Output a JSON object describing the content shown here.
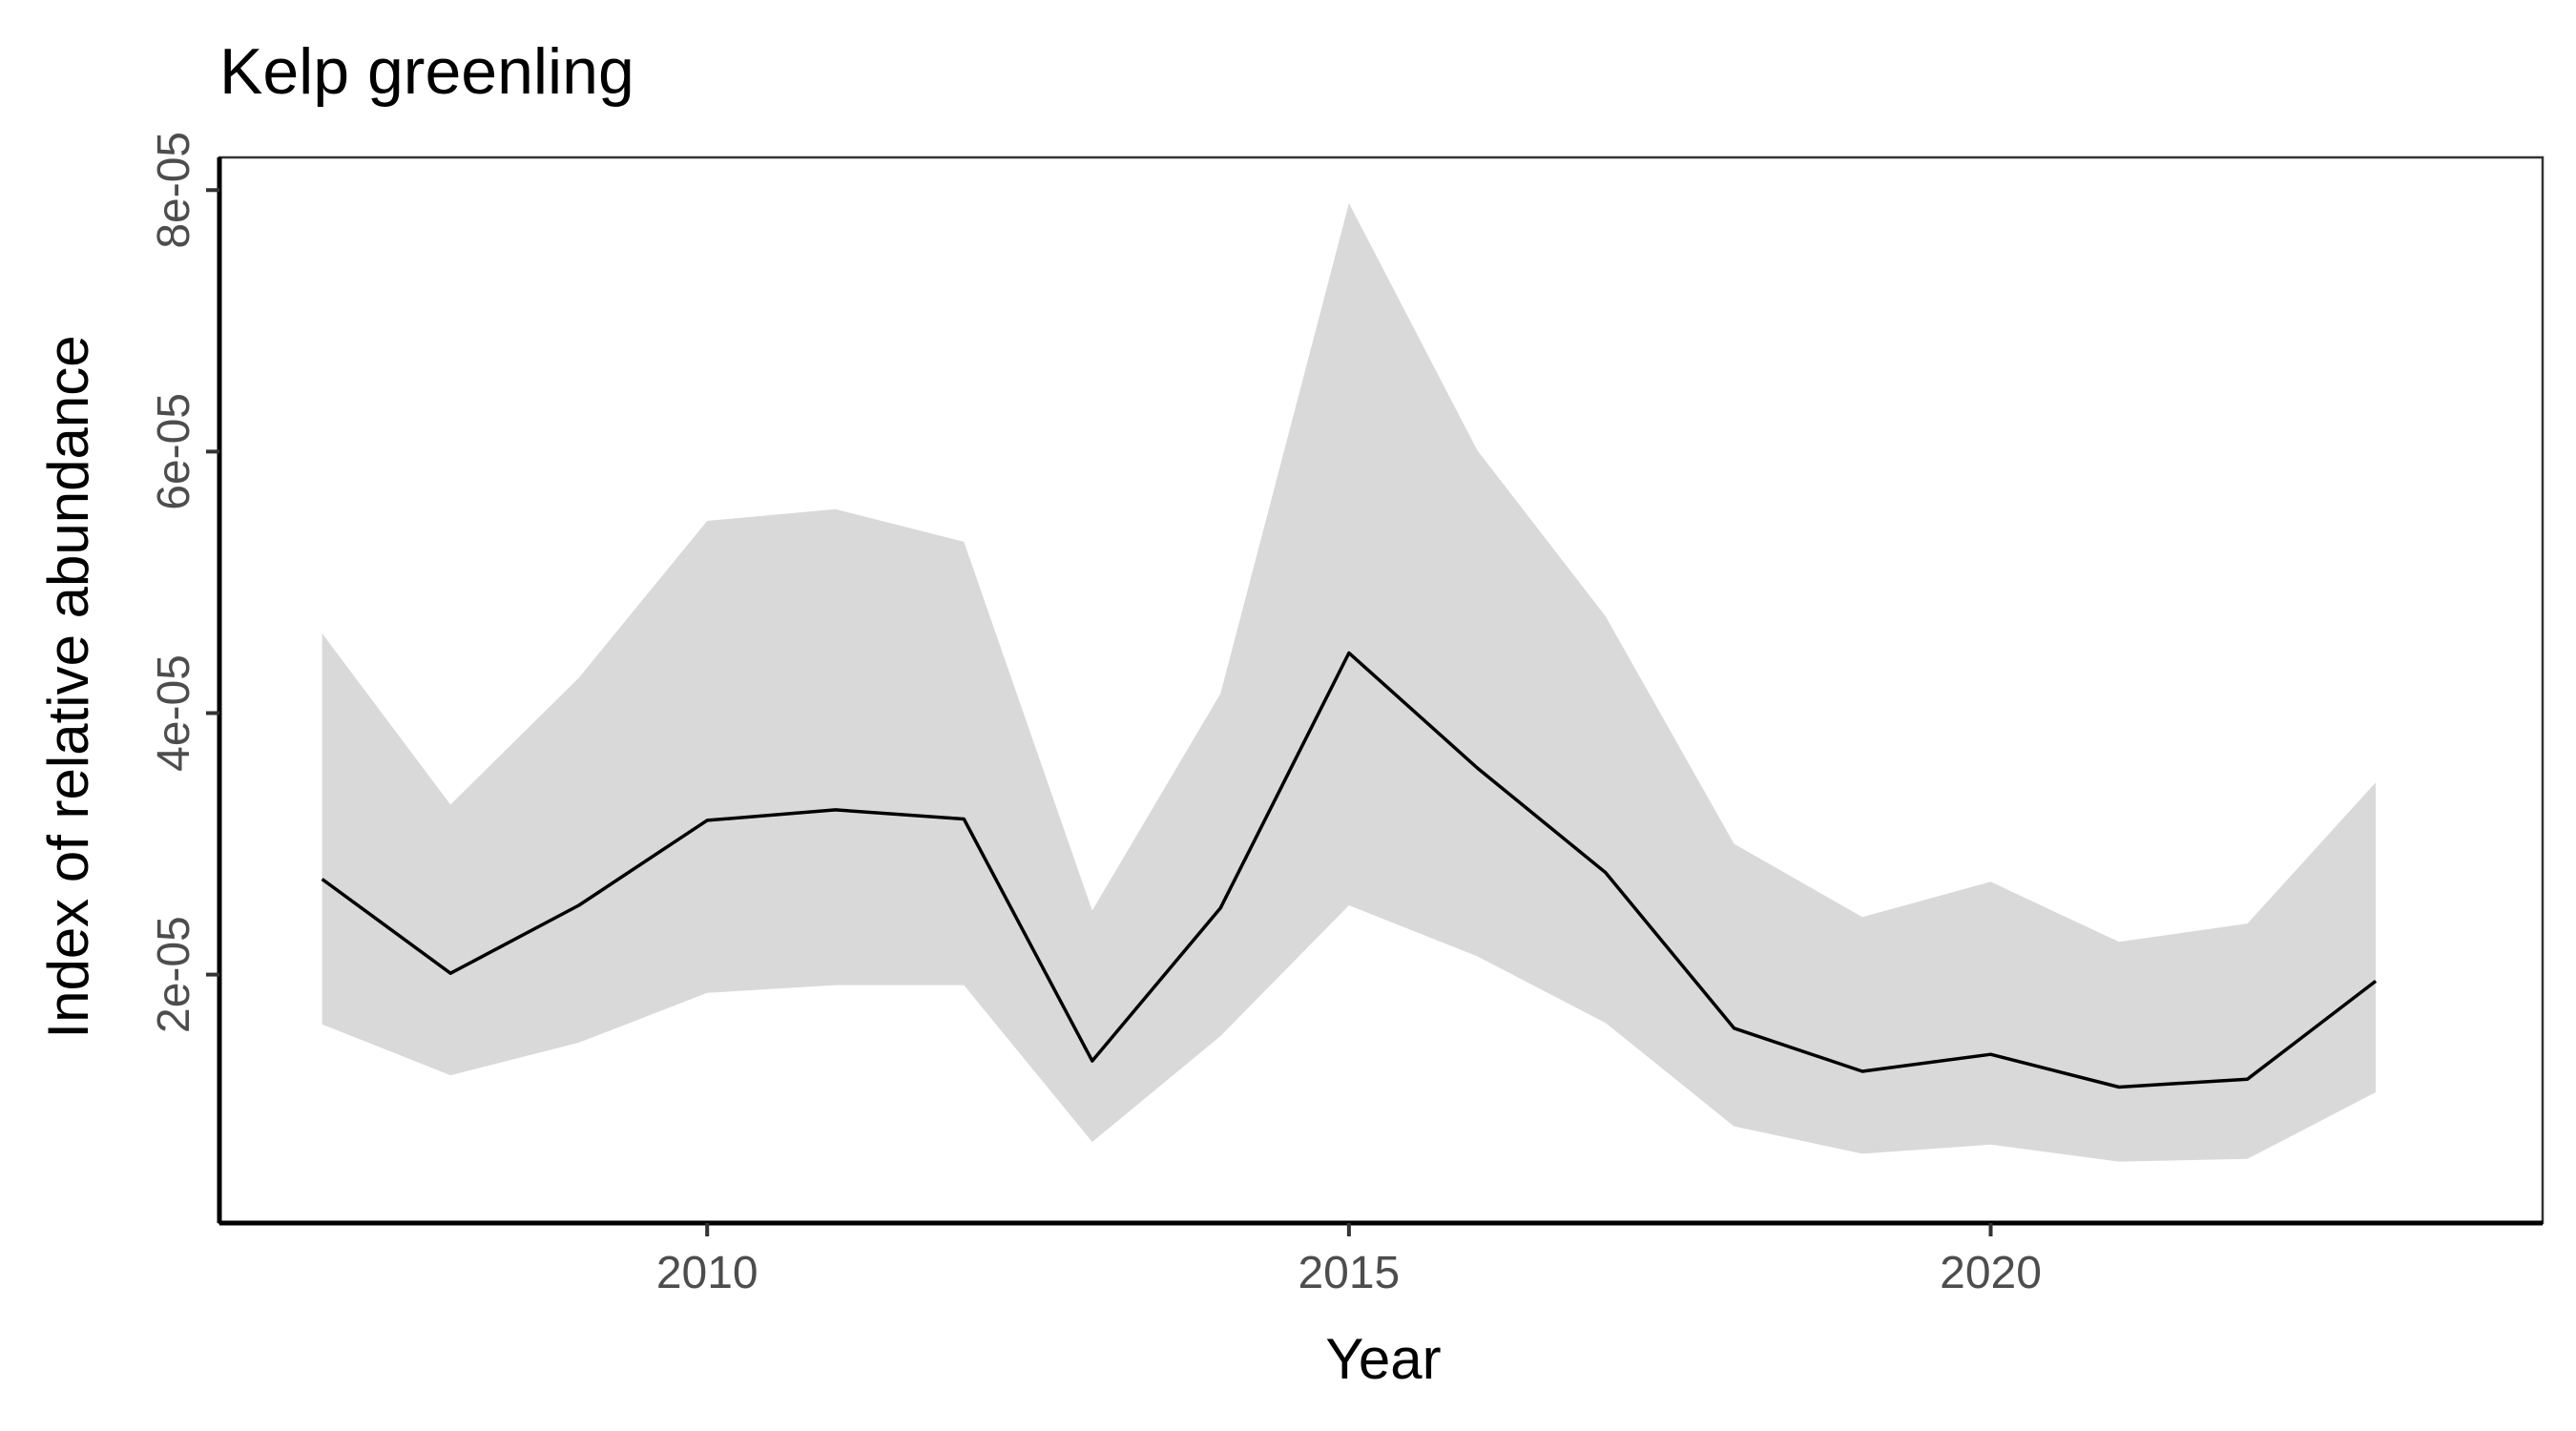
{
  "chart_data": {
    "type": "line",
    "title": "Kelp greenling",
    "xlabel": "Year",
    "ylabel": "Index of relative abundance",
    "x": [
      2007,
      2008,
      2009,
      2010,
      2011,
      2012,
      2013,
      2014,
      2015,
      2016,
      2017,
      2018,
      2019,
      2020,
      2021,
      2022,
      2023
    ],
    "series": [
      {
        "values": [
          2.73e-05,
          2.01e-05,
          2.53e-05,
          3.18e-05,
          3.26e-05,
          3.19e-05,
          1.34e-05,
          2.51e-05,
          4.46e-05,
          3.58e-05,
          2.78e-05,
          1.59e-05,
          1.26e-05,
          1.39e-05,
          1.14e-05,
          1.2e-05,
          1.95e-05
        ],
        "lower": [
          1.62e-05,
          1.23e-05,
          1.48e-05,
          1.86e-05,
          1.92e-05,
          1.92e-05,
          7.2e-06,
          1.53e-05,
          2.53e-05,
          2.14e-05,
          1.63e-05,
          8.4e-06,
          6.3e-06,
          7e-06,
          5.7e-06,
          5.9e-06,
          1.1e-05
        ],
        "upper": [
          4.61e-05,
          3.3e-05,
          4.27e-05,
          5.47e-05,
          5.56e-05,
          5.31e-05,
          2.49e-05,
          4.15e-05,
          7.9e-05,
          6.01e-05,
          4.74e-05,
          3e-05,
          2.44e-05,
          2.71e-05,
          2.25e-05,
          2.39e-05,
          3.47e-05
        ]
      }
    ],
    "xticks": [
      2010,
      2015,
      2020
    ],
    "xtick_labels": [
      "2010",
      "2015",
      "2020"
    ],
    "yticks": [
      2e-05,
      4e-05,
      6e-05,
      8e-05
    ],
    "ytick_labels": [
      "2e-05",
      "4e-05",
      "6e-05",
      "8e-05"
    ],
    "xlim": [
      2006.2,
      2024.3
    ],
    "ylim": [
      1e-06,
      8.25e-05
    ],
    "grid": false,
    "legend": "none",
    "colors": {
      "line": "#000000",
      "ribbon": "#d9d9d9",
      "axis": "#000000",
      "tick_label": "#4d4d4d"
    }
  }
}
